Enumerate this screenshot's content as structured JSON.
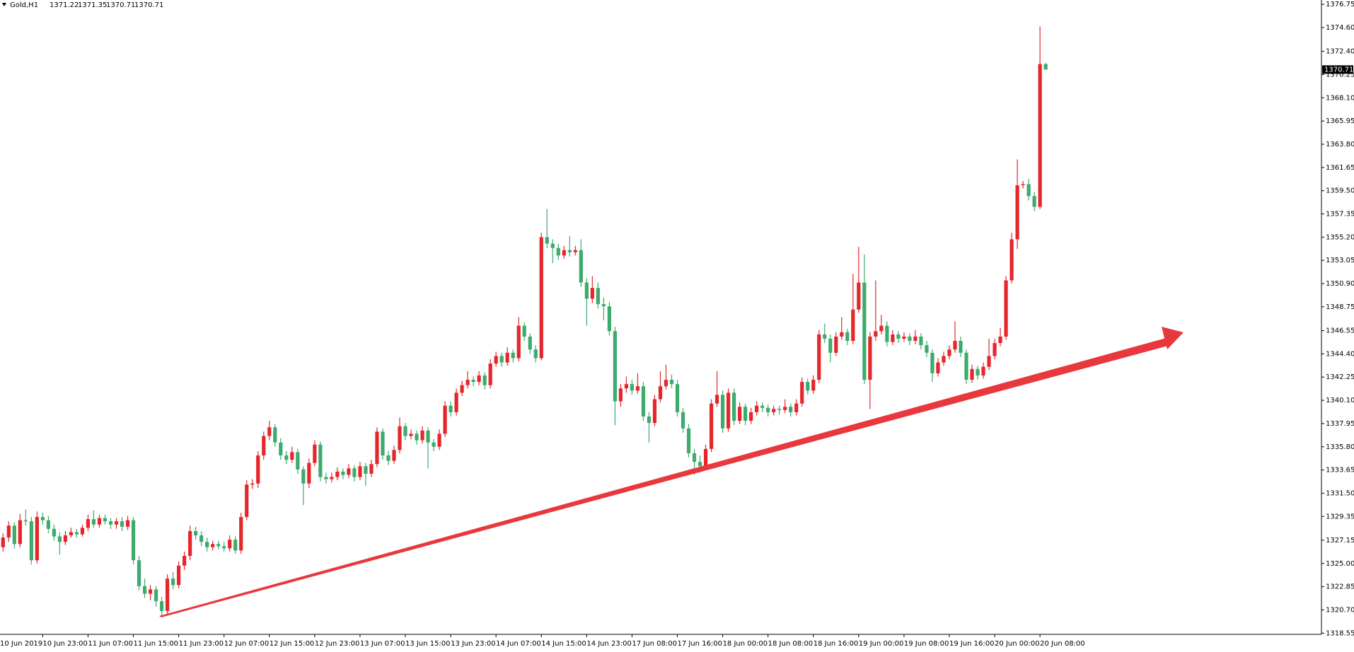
{
  "chart_data": {
    "type": "candlestick",
    "symbol": "Gold,H1",
    "up_color": "#e5262a",
    "down_color": "#3daa6e",
    "ylim": [
      1318.44,
      1377.15
    ],
    "yticks": [
      1376.75,
      {
        "value": 1374.6,
        "label": "1374.60"
      },
      {
        "value": 1372.4,
        "label": "1372.40"
      },
      1370.25,
      {
        "value": 1368.1,
        "label": "1368.10"
      },
      1365.95,
      {
        "value": 1363.8,
        "label": "1363.80"
      },
      1361.65,
      {
        "value": 1359.5,
        "label": "1359.50"
      },
      1357.35,
      {
        "value": 1355.2,
        "label": "1355.20"
      },
      1353.05,
      {
        "value": 1350.9,
        "label": "1350.90"
      },
      1348.75,
      1346.55,
      {
        "value": 1344.4,
        "label": "1344.40"
      },
      1342.25,
      {
        "value": 1340.1,
        "label": "1340.10"
      },
      1337.95,
      {
        "value": 1335.8,
        "label": "1335.80"
      },
      1333.65,
      {
        "value": 1331.5,
        "label": "1331.50"
      },
      1329.35,
      1327.15,
      {
        "value": 1325,
        "label": "1325.00"
      },
      1322.85,
      {
        "value": 1320.7,
        "label": "1320.70"
      },
      1318.55
    ],
    "xlabels": [
      "10 Jun 2019",
      "10 Jun 23:00",
      "11 Jun 07:00",
      "11 Jun 15:00",
      "11 Jun 23:00",
      "12 Jun 07:00",
      "12 Jun 15:00",
      "12 Jun 23:00",
      "13 Jun 07:00",
      "13 Jun 15:00",
      "13 Jun 23:00",
      "14 Jun 07:00",
      "14 Jun 15:00",
      "14 Jun 23:00",
      "17 Jun 08:00",
      "17 Jun 16:00",
      "18 Jun 00:00",
      "18 Jun 08:00",
      "18 Jun 16:00",
      "19 Jun 00:00",
      "19 Jun 08:00",
      "19 Jun 16:00",
      "20 Jun 00:00",
      "20 Jun 08:00"
    ],
    "candles": [
      [
        1326.5,
        1327.8,
        1326.1,
        1327.4
      ],
      [
        1327.4,
        1328.9,
        1327.0,
        1328.5
      ],
      [
        1328.5,
        1328.8,
        1326.4,
        1326.8
      ],
      [
        1326.8,
        1329.6,
        1326.5,
        1329.0
      ],
      [
        1329.0,
        1330.0,
        1328.5,
        1328.9
      ],
      [
        1328.9,
        1329.3,
        1324.9,
        1325.3
      ],
      [
        1325.3,
        1329.8,
        1325.0,
        1329.3
      ],
      [
        1329.3,
        1329.7,
        1328.6,
        1329.0
      ],
      [
        1329.0,
        1329.4,
        1327.8,
        1328.2
      ],
      [
        1328.2,
        1328.6,
        1327.1,
        1327.5
      ],
      [
        1327.5,
        1327.9,
        1325.8,
        1327.0
      ],
      [
        1327.0,
        1328.0,
        1326.7,
        1327.6
      ],
      [
        1327.6,
        1328.3,
        1327.4,
        1327.9
      ],
      [
        1327.9,
        1328.2,
        1327.4,
        1327.7
      ],
      [
        1327.7,
        1328.6,
        1327.5,
        1328.3
      ],
      [
        1328.3,
        1329.5,
        1328.0,
        1329.1
      ],
      [
        1329.1,
        1329.9,
        1328.3,
        1328.6
      ],
      [
        1328.6,
        1329.5,
        1328.3,
        1329.2
      ],
      [
        1329.2,
        1329.5,
        1328.6,
        1328.9
      ],
      [
        1328.9,
        1329.2,
        1328.2,
        1328.6
      ],
      [
        1328.6,
        1329.2,
        1328.2,
        1328.9
      ],
      [
        1328.9,
        1329.3,
        1328.0,
        1328.4
      ],
      [
        1328.4,
        1329.4,
        1328.1,
        1329.0
      ],
      [
        1329.0,
        1329.3,
        1324.9,
        1325.3
      ],
      [
        1325.3,
        1325.7,
        1322.5,
        1322.9
      ],
      [
        1322.9,
        1323.6,
        1321.8,
        1322.2
      ],
      [
        1322.2,
        1323.0,
        1321.6,
        1322.6
      ],
      [
        1322.6,
        1322.9,
        1321.0,
        1321.5
      ],
      [
        1321.5,
        1321.9,
        1320.2,
        1320.6
      ],
      [
        1320.6,
        1324.0,
        1320.3,
        1323.6
      ],
      [
        1323.6,
        1324.2,
        1322.6,
        1323.0
      ],
      [
        1323.0,
        1325.2,
        1322.7,
        1324.8
      ],
      [
        1324.8,
        1326.1,
        1324.4,
        1325.7
      ],
      [
        1325.7,
        1328.5,
        1325.3,
        1328.0
      ],
      [
        1328.0,
        1328.4,
        1327.2,
        1327.6
      ],
      [
        1327.6,
        1328.0,
        1326.6,
        1327.0
      ],
      [
        1327.0,
        1327.4,
        1326.1,
        1326.5
      ],
      [
        1326.5,
        1327.1,
        1326.2,
        1326.8
      ],
      [
        1326.8,
        1327.1,
        1326.3,
        1326.6
      ],
      [
        1326.6,
        1327.0,
        1326.1,
        1326.4
      ],
      [
        1326.4,
        1327.6,
        1326.1,
        1327.2
      ],
      [
        1327.2,
        1327.5,
        1325.9,
        1326.2
      ],
      [
        1326.2,
        1329.7,
        1325.9,
        1329.3
      ],
      [
        1329.3,
        1332.7,
        1329.0,
        1332.3
      ],
      [
        1332.3,
        1332.8,
        1331.9,
        1332.4
      ],
      [
        1332.4,
        1335.4,
        1332.0,
        1335.0
      ],
      [
        1335.0,
        1337.2,
        1334.6,
        1336.8
      ],
      [
        1336.8,
        1338.2,
        1336.4,
        1337.6
      ],
      [
        1337.6,
        1337.9,
        1335.8,
        1336.2
      ],
      [
        1336.2,
        1336.6,
        1334.6,
        1335.0
      ],
      [
        1335.0,
        1335.4,
        1334.2,
        1334.6
      ],
      [
        1334.6,
        1335.8,
        1334.3,
        1335.3
      ],
      [
        1335.3,
        1335.6,
        1333.3,
        1333.7
      ],
      [
        1333.7,
        1334.0,
        1330.4,
        1332.4
      ],
      [
        1332.4,
        1334.7,
        1332.0,
        1334.3
      ],
      [
        1334.3,
        1336.4,
        1334.0,
        1336.0
      ],
      [
        1336.0,
        1336.3,
        1332.6,
        1333.0
      ],
      [
        1333.0,
        1333.4,
        1332.4,
        1332.8
      ],
      [
        1332.8,
        1333.4,
        1332.5,
        1333.0
      ],
      [
        1333.0,
        1333.9,
        1332.7,
        1333.5
      ],
      [
        1333.5,
        1333.8,
        1332.8,
        1333.2
      ],
      [
        1333.2,
        1334.2,
        1332.9,
        1333.8
      ],
      [
        1333.8,
        1334.1,
        1332.6,
        1333.0
      ],
      [
        1333.0,
        1334.4,
        1332.7,
        1334.0
      ],
      [
        1334.0,
        1334.3,
        1332.2,
        1333.3
      ],
      [
        1333.3,
        1334.6,
        1333.0,
        1334.2
      ],
      [
        1334.2,
        1337.6,
        1333.9,
        1337.2
      ],
      [
        1337.2,
        1337.5,
        1334.6,
        1335.0
      ],
      [
        1335.0,
        1335.4,
        1334.1,
        1334.5
      ],
      [
        1334.5,
        1335.9,
        1334.2,
        1335.5
      ],
      [
        1335.5,
        1338.5,
        1335.2,
        1337.7
      ],
      [
        1337.7,
        1338.0,
        1336.4,
        1336.8
      ],
      [
        1336.8,
        1337.4,
        1336.5,
        1337.0
      ],
      [
        1337.0,
        1337.3,
        1336.0,
        1336.4
      ],
      [
        1336.4,
        1337.7,
        1336.1,
        1337.3
      ],
      [
        1337.3,
        1337.6,
        1333.8,
        1336.2
      ],
      [
        1336.2,
        1336.5,
        1335.4,
        1335.8
      ],
      [
        1335.8,
        1337.4,
        1335.5,
        1337.0
      ],
      [
        1337.0,
        1340.0,
        1336.7,
        1339.6
      ],
      [
        1339.6,
        1340.0,
        1338.6,
        1339.0
      ],
      [
        1339.0,
        1341.2,
        1338.7,
        1340.8
      ],
      [
        1340.8,
        1341.9,
        1340.5,
        1341.5
      ],
      [
        1341.5,
        1342.8,
        1341.2,
        1342.0
      ],
      [
        1342.0,
        1342.3,
        1341.4,
        1341.8
      ],
      [
        1341.8,
        1342.8,
        1341.5,
        1342.4
      ],
      [
        1342.4,
        1342.7,
        1341.1,
        1341.5
      ],
      [
        1341.5,
        1343.9,
        1341.2,
        1343.5
      ],
      [
        1343.5,
        1344.6,
        1343.2,
        1344.2
      ],
      [
        1344.2,
        1344.5,
        1343.2,
        1343.6
      ],
      [
        1343.6,
        1345.0,
        1343.3,
        1344.5
      ],
      [
        1344.5,
        1344.8,
        1343.6,
        1344.0
      ],
      [
        1344.0,
        1347.8,
        1343.7,
        1347.0
      ],
      [
        1347.0,
        1347.3,
        1345.6,
        1346.0
      ],
      [
        1346.0,
        1346.3,
        1344.4,
        1344.8
      ],
      [
        1344.8,
        1345.2,
        1343.6,
        1344.0
      ],
      [
        1344.0,
        1355.6,
        1343.8,
        1355.2
      ],
      [
        1355.2,
        1357.8,
        1354.2,
        1354.6
      ],
      [
        1354.6,
        1355.0,
        1352.8,
        1354.2
      ],
      [
        1354.2,
        1354.6,
        1353.1,
        1353.5
      ],
      [
        1353.5,
        1354.4,
        1353.2,
        1354.0
      ],
      [
        1354.0,
        1355.3,
        1353.4,
        1353.8
      ],
      [
        1353.8,
        1354.4,
        1353.5,
        1354.0
      ],
      [
        1354.0,
        1355.0,
        1350.6,
        1351.0
      ],
      [
        1351.0,
        1351.4,
        1347.0,
        1349.5
      ],
      [
        1349.5,
        1351.6,
        1349.1,
        1350.5
      ],
      [
        1350.5,
        1351.0,
        1348.6,
        1349.0
      ],
      [
        1349.0,
        1349.6,
        1347.5,
        1348.8
      ],
      [
        1348.8,
        1349.2,
        1346.1,
        1346.5
      ],
      [
        1346.5,
        1346.9,
        1337.8,
        1340.0
      ],
      [
        1340.0,
        1341.6,
        1339.5,
        1341.2
      ],
      [
        1341.2,
        1342.3,
        1340.8,
        1341.6
      ],
      [
        1341.6,
        1342.0,
        1340.6,
        1341.0
      ],
      [
        1341.0,
        1342.6,
        1340.7,
        1341.4
      ],
      [
        1341.4,
        1341.8,
        1338.2,
        1338.6
      ],
      [
        1338.6,
        1339.0,
        1336.2,
        1338.0
      ],
      [
        1338.0,
        1340.6,
        1337.7,
        1340.2
      ],
      [
        1340.2,
        1342.8,
        1339.9,
        1341.4
      ],
      [
        1341.4,
        1343.4,
        1341.1,
        1342.0
      ],
      [
        1342.0,
        1342.5,
        1341.2,
        1341.6
      ],
      [
        1341.6,
        1342.0,
        1338.6,
        1339.0
      ],
      [
        1339.0,
        1339.4,
        1337.1,
        1337.5
      ],
      [
        1337.5,
        1337.9,
        1334.8,
        1335.2
      ],
      [
        1335.2,
        1335.6,
        1333.2,
        1334.4
      ],
      [
        1334.4,
        1335.0,
        1333.4,
        1334.0
      ],
      [
        1334.0,
        1336.0,
        1333.7,
        1335.6
      ],
      [
        1335.6,
        1340.2,
        1335.3,
        1339.8
      ],
      [
        1339.8,
        1342.8,
        1339.5,
        1340.6
      ],
      [
        1340.6,
        1341.0,
        1337.1,
        1337.5
      ],
      [
        1337.5,
        1341.2,
        1337.2,
        1340.8
      ],
      [
        1340.8,
        1341.2,
        1337.8,
        1338.2
      ],
      [
        1338.2,
        1339.9,
        1337.9,
        1339.5
      ],
      [
        1339.5,
        1339.8,
        1337.8,
        1338.2
      ],
      [
        1338.2,
        1339.4,
        1337.9,
        1339.0
      ],
      [
        1339.0,
        1340.0,
        1338.7,
        1339.6
      ],
      [
        1339.6,
        1339.9,
        1339.0,
        1339.4
      ],
      [
        1339.4,
        1339.7,
        1338.6,
        1339.0
      ],
      [
        1339.0,
        1339.6,
        1338.7,
        1339.3
      ],
      [
        1339.3,
        1339.6,
        1338.8,
        1339.2
      ],
      [
        1339.2,
        1340.2,
        1338.9,
        1339.5
      ],
      [
        1339.5,
        1339.8,
        1338.6,
        1339.0
      ],
      [
        1339.0,
        1340.2,
        1338.7,
        1339.8
      ],
      [
        1339.8,
        1342.2,
        1339.5,
        1341.8
      ],
      [
        1341.8,
        1342.1,
        1340.6,
        1341.0
      ],
      [
        1341.0,
        1342.4,
        1340.7,
        1342.0
      ],
      [
        1342.0,
        1346.6,
        1341.7,
        1346.2
      ],
      [
        1346.2,
        1347.2,
        1345.4,
        1345.8
      ],
      [
        1345.8,
        1346.2,
        1343.6,
        1344.5
      ],
      [
        1344.5,
        1346.4,
        1344.2,
        1346.0
      ],
      [
        1346.0,
        1347.8,
        1345.7,
        1346.4
      ],
      [
        1346.4,
        1346.7,
        1345.2,
        1345.6
      ],
      [
        1345.6,
        1351.8,
        1345.3,
        1348.5
      ],
      [
        1348.5,
        1354.3,
        1348.2,
        1351.0
      ],
      [
        1351.0,
        1353.6,
        1341.6,
        1342.0
      ],
      [
        1342.0,
        1346.4,
        1339.3,
        1346.0
      ],
      [
        1346.0,
        1351.2,
        1345.6,
        1346.5
      ],
      [
        1346.5,
        1348.0,
        1346.2,
        1347.0
      ],
      [
        1347.0,
        1347.4,
        1345.1,
        1345.5
      ],
      [
        1345.5,
        1346.6,
        1345.2,
        1346.2
      ],
      [
        1346.2,
        1346.5,
        1345.4,
        1345.8
      ],
      [
        1345.8,
        1346.4,
        1345.5,
        1346.0
      ],
      [
        1346.0,
        1346.3,
        1345.2,
        1345.6
      ],
      [
        1345.6,
        1346.6,
        1345.3,
        1346.0
      ],
      [
        1346.0,
        1346.3,
        1344.8,
        1345.2
      ],
      [
        1345.2,
        1345.6,
        1344.1,
        1344.5
      ],
      [
        1344.5,
        1344.8,
        1341.8,
        1342.6
      ],
      [
        1342.6,
        1344.0,
        1342.3,
        1343.6
      ],
      [
        1343.6,
        1344.6,
        1343.3,
        1344.2
      ],
      [
        1344.2,
        1345.2,
        1343.9,
        1344.8
      ],
      [
        1344.8,
        1347.4,
        1344.5,
        1345.6
      ],
      [
        1345.6,
        1346.0,
        1344.1,
        1344.5
      ],
      [
        1344.5,
        1344.8,
        1341.6,
        1342.0
      ],
      [
        1342.0,
        1343.4,
        1341.7,
        1343.0
      ],
      [
        1343.0,
        1343.3,
        1342.0,
        1342.4
      ],
      [
        1342.4,
        1343.6,
        1342.1,
        1343.2
      ],
      [
        1343.2,
        1345.8,
        1342.9,
        1344.2
      ],
      [
        1344.2,
        1345.8,
        1343.9,
        1345.4
      ],
      [
        1345.4,
        1346.8,
        1345.1,
        1346.0
      ],
      [
        1346.0,
        1351.6,
        1345.7,
        1351.2
      ],
      [
        1351.2,
        1355.6,
        1350.9,
        1355.0
      ],
      [
        1355.0,
        1362.4,
        1354.1,
        1360.0
      ],
      [
        1360.0,
        1360.4,
        1359.7,
        1360.1
      ],
      [
        1360.1,
        1360.6,
        1358.6,
        1359.0
      ],
      [
        1359.0,
        1359.4,
        1357.6,
        1358.0
      ],
      [
        1358.0,
        1374.7,
        1357.8,
        1371.22
      ],
      [
        1371.22,
        1371.35,
        1370.71,
        1370.71
      ]
    ]
  }
}
